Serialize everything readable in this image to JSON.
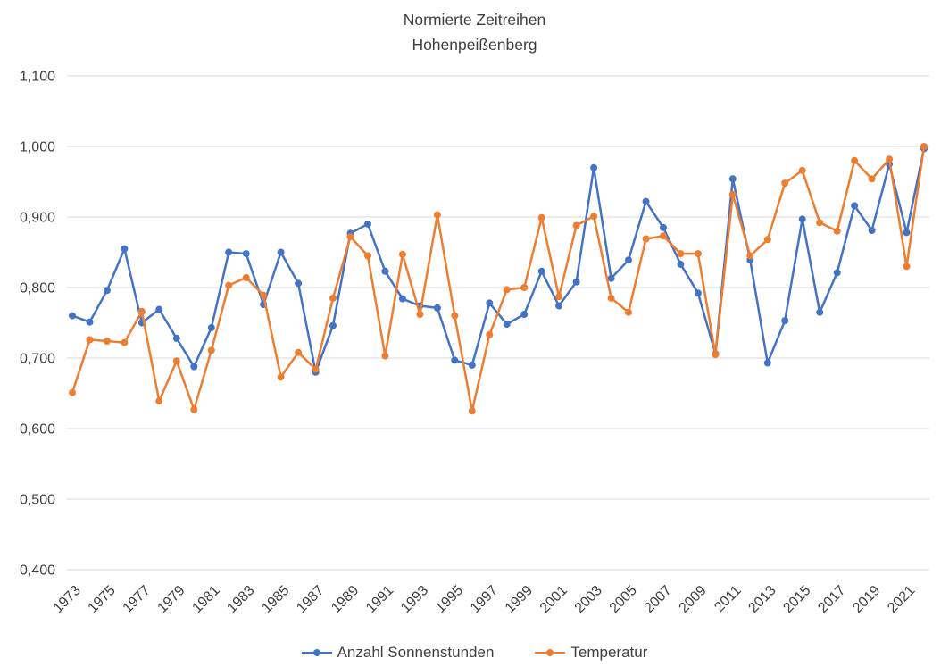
{
  "title": {
    "line1": "Normierte Zeitreihen",
    "line2": "Hohenpeißenberg"
  },
  "colors": {
    "series1": "#4472C4",
    "series2": "#ED7D31",
    "grid": "#D9D9D9",
    "text": "#3f3f3f"
  },
  "y_axis": {
    "tick_labels": [
      "1,100",
      "1,000",
      "0,900",
      "0,800",
      "0,700",
      "0,600",
      "0,500",
      "0,400"
    ],
    "min": 0.4,
    "max": 1.1,
    "step": 0.1
  },
  "x_axis": {
    "tick_labels": [
      "1973",
      "1975",
      "1977",
      "1979",
      "1981",
      "1983",
      "1985",
      "1987",
      "1989",
      "1991",
      "1993",
      "1995",
      "1997",
      "1999",
      "2001",
      "2003",
      "2005",
      "2007",
      "2009",
      "2011",
      "2013",
      "2015",
      "2017",
      "2019",
      "2021"
    ]
  },
  "legend": {
    "items": [
      {
        "label": "Anzahl Sonnenstunden",
        "color": "#4472C4"
      },
      {
        "label": "Temperatur",
        "color": "#ED7D31"
      }
    ]
  },
  "chart_data": {
    "type": "line",
    "title": "Normierte Zeitreihen Hohenpeißenberg",
    "xlabel": "",
    "ylabel": "",
    "ylim": [
      0.4,
      1.1
    ],
    "ytick_step": 0.1,
    "grid": "horizontal",
    "legend_position": "bottom",
    "number_format": "de-comma",
    "x": [
      1973,
      1974,
      1975,
      1976,
      1977,
      1978,
      1979,
      1980,
      1981,
      1982,
      1983,
      1984,
      1985,
      1986,
      1987,
      1988,
      1989,
      1990,
      1991,
      1992,
      1993,
      1994,
      1995,
      1996,
      1997,
      1998,
      1999,
      2000,
      2001,
      2002,
      2003,
      2004,
      2005,
      2006,
      2007,
      2008,
      2009,
      2010,
      2011,
      2012,
      2013,
      2014,
      2015,
      2016,
      2017,
      2018,
      2019,
      2020,
      2021,
      2022
    ],
    "series": [
      {
        "name": "Anzahl Sonnenstunden",
        "color": "#4472C4",
        "values": [
          0.76,
          0.751,
          0.796,
          0.855,
          0.75,
          0.769,
          0.728,
          0.688,
          0.743,
          0.85,
          0.848,
          0.776,
          0.85,
          0.806,
          0.68,
          0.746,
          0.877,
          0.89,
          0.823,
          0.784,
          0.774,
          0.771,
          0.697,
          0.69,
          0.778,
          0.748,
          0.762,
          0.823,
          0.774,
          0.808,
          0.97,
          0.813,
          0.839,
          0.922,
          0.885,
          0.833,
          0.792,
          0.706,
          0.954,
          0.839,
          0.693,
          0.753,
          0.897,
          0.765,
          0.821,
          0.916,
          0.881,
          0.975,
          0.878,
          0.997
        ]
      },
      {
        "name": "Temperatur",
        "color": "#ED7D31",
        "values": [
          0.651,
          0.726,
          0.724,
          0.722,
          0.766,
          0.639,
          0.696,
          0.627,
          0.711,
          0.803,
          0.814,
          0.789,
          0.673,
          0.708,
          0.684,
          0.785,
          0.872,
          0.845,
          0.703,
          0.847,
          0.762,
          0.903,
          0.76,
          0.625,
          0.733,
          0.797,
          0.8,
          0.899,
          0.787,
          0.888,
          0.901,
          0.785,
          0.765,
          0.869,
          0.873,
          0.848,
          0.848,
          0.705,
          0.932,
          0.845,
          0.868,
          0.948,
          0.966,
          0.892,
          0.88,
          0.98,
          0.954,
          0.982,
          0.83,
          1.0
        ]
      }
    ]
  }
}
